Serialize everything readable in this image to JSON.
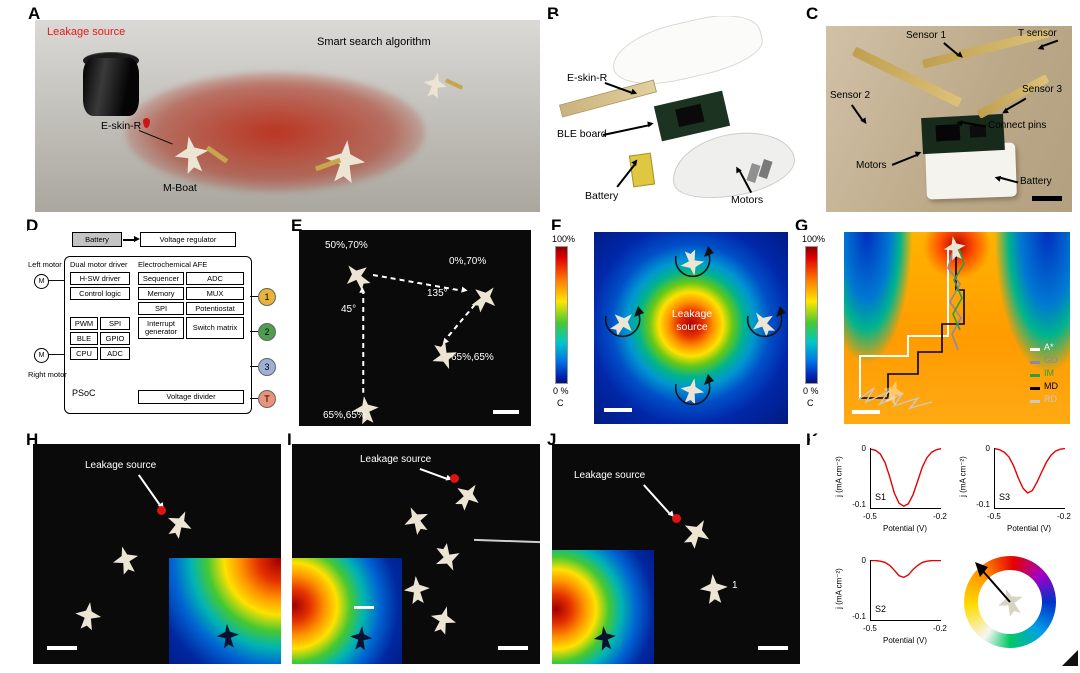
{
  "panels": {
    "a": {
      "label": "A",
      "leakage_source": "Leakage source",
      "algorithm": "Smart search algorithm",
      "eskin": "E-skin-R",
      "mboat": "M-Boat"
    },
    "b": {
      "label": "B",
      "eskin": "E-skin-R",
      "ble_board": "BLE board",
      "battery": "Battery",
      "motors": "Motors"
    },
    "c": {
      "label": "C",
      "sensor1": "Sensor 1",
      "t_sensor": "T sensor",
      "sensor2": "Sensor 2",
      "sensor3": "Sensor 3",
      "connect_pins": "Connect pins",
      "motors": "Motors",
      "battery": "Battery"
    },
    "d": {
      "label": "D",
      "battery": "Battery",
      "voltage_regulator": "Voltage regulator",
      "left_motor": "Left motor",
      "right_motor": "Right motor",
      "motor_symbol": "M",
      "dual_motor_driver": "Dual motor driver",
      "hsw_driver": "H-SW driver",
      "control_logic": "Control logic",
      "afe": "Electrochemical AFE",
      "sequencer": "Sequencer",
      "adc_afe": "ADC",
      "memory": "Memory",
      "mux": "MUX",
      "spi_afe": "SPI",
      "potentiostat": "Potentiostat",
      "interrupt_generator": "Interrupt generator",
      "switch_matrix": "Switch matrix",
      "pwm": "PWM",
      "spi": "SPI",
      "ble": "BLE",
      "gpio": "GPIO",
      "cpu": "CPU",
      "adc": "ADC",
      "psoc": "PSoC",
      "voltage_divider": "Voltage divider",
      "electrodes": [
        {
          "label": "1",
          "color": "#e8b33a"
        },
        {
          "label": "2",
          "color": "#4f9e4f"
        },
        {
          "label": "3",
          "color": "#9fb0d8"
        },
        {
          "label": "T",
          "color": "#e8937a"
        }
      ]
    },
    "e": {
      "label": "E",
      "wp_top_left": "50%,70%",
      "wp_top_right": "0%,70%",
      "angle_left": "45°",
      "angle_right": "135°",
      "wp_mid": "65%,65%",
      "wp_bottom": "65%,65%"
    },
    "f": {
      "label": "F",
      "cbar_max": "100%",
      "cbar_min": "0 %",
      "cbar_unit": "C",
      "leakage_line1": "Leakage",
      "leakage_line2": "source"
    },
    "g": {
      "label": "G",
      "cbar_max": "100%",
      "cbar_min": "0 %",
      "cbar_unit": "C",
      "legend": [
        {
          "label": "A*",
          "color": "#ffffff"
        },
        {
          "label": "GD",
          "color": "#8f86a8"
        },
        {
          "label": "IM",
          "color": "#2f9e3f"
        },
        {
          "label": "MD",
          "color": "#000000"
        },
        {
          "label": "RD",
          "color": "#c9c9c9"
        }
      ]
    },
    "h": {
      "label": "H",
      "leakage_source": "Leakage source"
    },
    "i": {
      "label": "I",
      "leakage_source": "Leakage source"
    },
    "j": {
      "label": "J",
      "leakage_source": "Leakage source",
      "boat_number": "1"
    },
    "k": {
      "label": "K"
    }
  },
  "chart_data": {
    "type": "line",
    "plots": [
      {
        "id": "S1",
        "xlabel": "Potential (V)",
        "ylabel": "j (mA cm⁻²)",
        "xlim": [
          -0.5,
          -0.2
        ],
        "ylim": [
          -0.1,
          0
        ],
        "xticks": [
          "-0.5",
          "-0.2"
        ],
        "yticks": [
          "0",
          "-0.1"
        ],
        "color": "#e60000",
        "x": [
          -0.5,
          -0.48,
          -0.46,
          -0.44,
          -0.42,
          -0.4,
          -0.38,
          -0.36,
          -0.34,
          -0.32,
          -0.3,
          -0.28,
          -0.26,
          -0.24,
          -0.22,
          -0.2
        ],
        "y": [
          -0.002,
          -0.004,
          -0.01,
          -0.024,
          -0.048,
          -0.075,
          -0.092,
          -0.097,
          -0.093,
          -0.078,
          -0.055,
          -0.032,
          -0.016,
          -0.007,
          -0.003,
          -0.001
        ]
      },
      {
        "id": "S3",
        "xlabel": "Potential (V)",
        "ylabel": "j (mA cm⁻²)",
        "xlim": [
          -0.5,
          -0.2
        ],
        "ylim": [
          -0.1,
          0
        ],
        "xticks": [
          "-0.5",
          "-0.2"
        ],
        "yticks": [
          "0",
          "-0.1"
        ],
        "color": "#e60000",
        "x": [
          -0.5,
          -0.48,
          -0.46,
          -0.44,
          -0.42,
          -0.4,
          -0.38,
          -0.36,
          -0.34,
          -0.32,
          -0.3,
          -0.28,
          -0.26,
          -0.24,
          -0.22,
          -0.2
        ],
        "y": [
          -0.001,
          -0.003,
          -0.007,
          -0.015,
          -0.03,
          -0.05,
          -0.067,
          -0.075,
          -0.071,
          -0.057,
          -0.04,
          -0.024,
          -0.012,
          -0.005,
          -0.002,
          -0.001
        ]
      },
      {
        "id": "S2",
        "xlabel": "Potential (V)",
        "ylabel": "j (mA cm⁻²)",
        "xlim": [
          -0.5,
          -0.2
        ],
        "ylim": [
          -0.1,
          0
        ],
        "xticks": [
          "-0.5",
          "-0.2"
        ],
        "yticks": [
          "0",
          "-0.1"
        ],
        "color": "#e60000",
        "x": [
          -0.5,
          -0.48,
          -0.46,
          -0.44,
          -0.42,
          -0.4,
          -0.38,
          -0.36,
          -0.34,
          -0.32,
          -0.3,
          -0.28,
          -0.26,
          -0.24,
          -0.22,
          -0.2
        ],
        "y": [
          -0.001,
          -0.001,
          -0.002,
          -0.004,
          -0.009,
          -0.017,
          -0.026,
          -0.029,
          -0.025,
          -0.016,
          -0.009,
          -0.004,
          -0.002,
          -0.001,
          -0.001,
          -0.001
        ]
      }
    ]
  }
}
